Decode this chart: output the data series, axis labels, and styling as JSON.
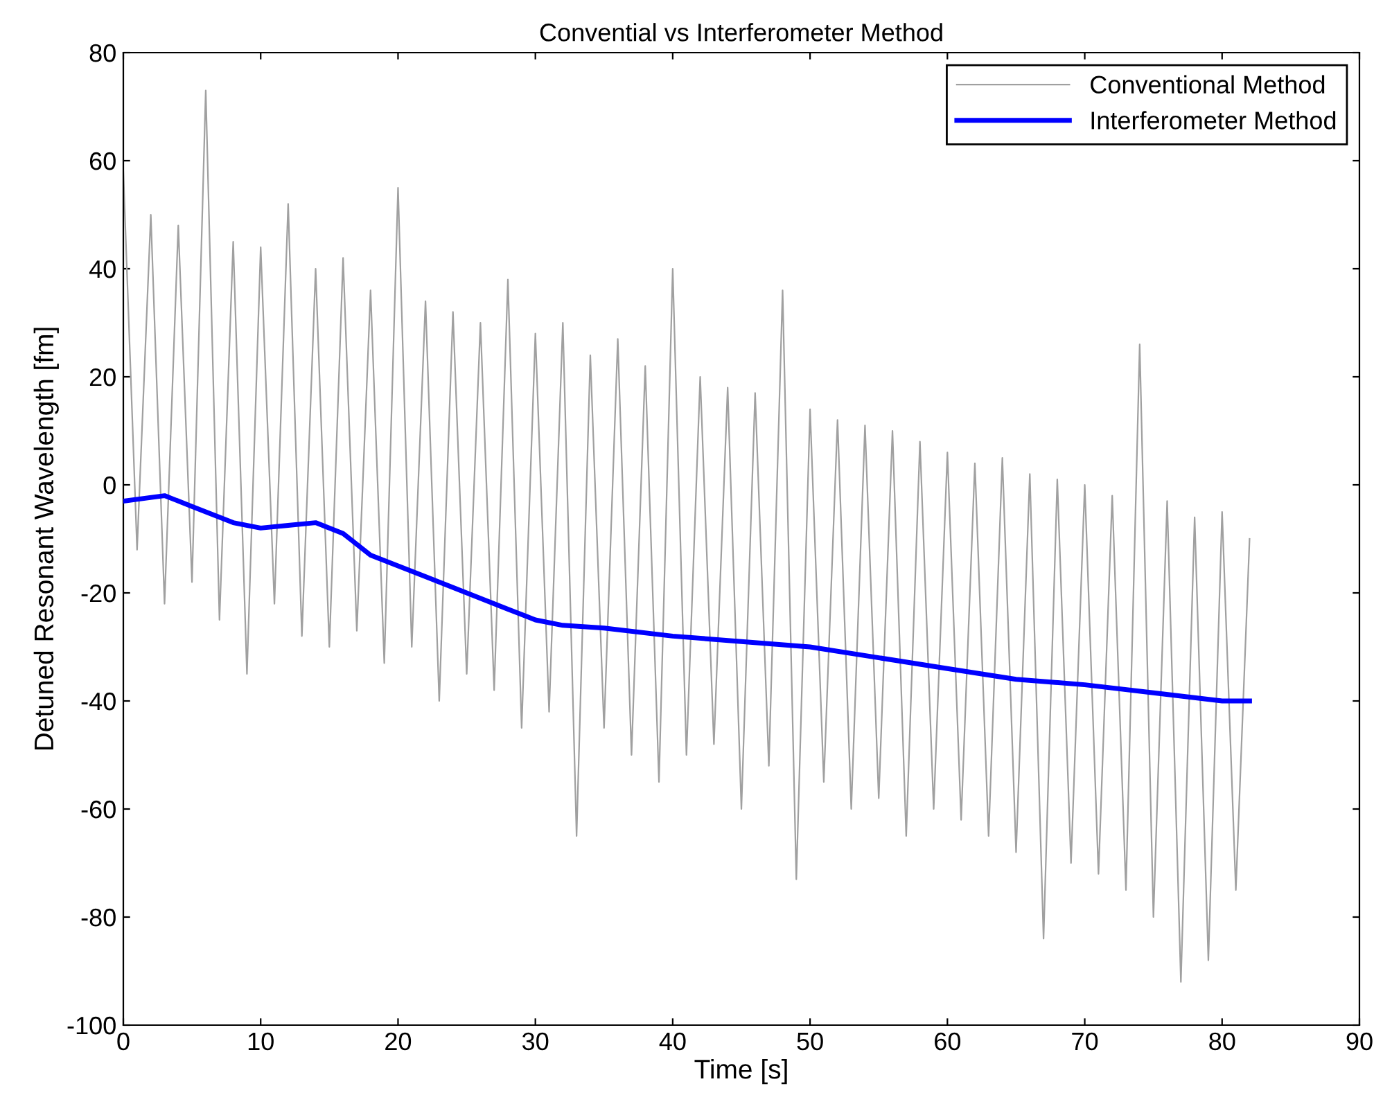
{
  "chart_data": {
    "type": "line",
    "title": "Convential vs Interferometer Method",
    "xlabel": "Time [s]",
    "ylabel": "Detuned Resonant Wavelength [fm]",
    "xlim": [
      0,
      90
    ],
    "xticks": [
      0,
      10,
      20,
      30,
      40,
      50,
      60,
      70,
      80,
      90
    ],
    "ylim": [
      -100,
      80
    ],
    "yticks": [
      -100,
      -80,
      -60,
      -40,
      -20,
      0,
      20,
      40,
      60,
      80
    ],
    "grid": false,
    "legend": "top right",
    "marker": "none",
    "line_style": "solid",
    "series": [
      {
        "name": "Conventional Method",
        "color": "#a0a0a0",
        "x": [
          0,
          1,
          2,
          3,
          4,
          5,
          6,
          7,
          8,
          9,
          10,
          11,
          12,
          13,
          14,
          15,
          16,
          17,
          18,
          19,
          20,
          21,
          22,
          23,
          24,
          25,
          26,
          27,
          28,
          29,
          30,
          31,
          32,
          33,
          34,
          35,
          36,
          37,
          38,
          39,
          40,
          41,
          42,
          43,
          44,
          45,
          46,
          47,
          48,
          49,
          50,
          51,
          52,
          53,
          54,
          55,
          56,
          57,
          58,
          59,
          60,
          61,
          62,
          63,
          64,
          65,
          66,
          67,
          68,
          69,
          70,
          71,
          72,
          73,
          74,
          75,
          76,
          77,
          78,
          79,
          80,
          81,
          82
        ],
        "values": [
          58,
          -12,
          50,
          -22,
          48,
          -18,
          73,
          -25,
          45,
          -35,
          44,
          -22,
          52,
          -28,
          40,
          -30,
          42,
          -27,
          36,
          -33,
          55,
          -30,
          34,
          -40,
          32,
          -35,
          30,
          -38,
          38,
          -45,
          28,
          -42,
          30,
          -65,
          24,
          -45,
          27,
          -50,
          22,
          -55,
          40,
          -50,
          20,
          -48,
          18,
          -60,
          17,
          -52,
          36,
          -73,
          14,
          -55,
          12,
          -60,
          11,
          -58,
          10,
          -65,
          8,
          -60,
          6,
          -62,
          4,
          -65,
          5,
          -68,
          2,
          -84,
          1,
          -70,
          0,
          -72,
          -2,
          -75,
          26,
          -80,
          -3,
          -92,
          -6,
          -88,
          -5,
          -75,
          -10
        ]
      },
      {
        "name": "Interferometer Method",
        "color": "#0000ff",
        "x": [
          0,
          3,
          5,
          8,
          10,
          12,
          14,
          16,
          18,
          20,
          22,
          25,
          28,
          30,
          32,
          35,
          40,
          45,
          50,
          55,
          60,
          65,
          70,
          75,
          80,
          82
        ],
        "values": [
          -3,
          -2,
          -4,
          -7,
          -8,
          -7.5,
          -7,
          -9,
          -13,
          -15,
          -17,
          -20,
          -23,
          -25,
          -26,
          -26.5,
          -28,
          -29,
          -30,
          -32,
          -34,
          -36,
          -37,
          -38.5,
          -40,
          -40
        ]
      }
    ]
  }
}
